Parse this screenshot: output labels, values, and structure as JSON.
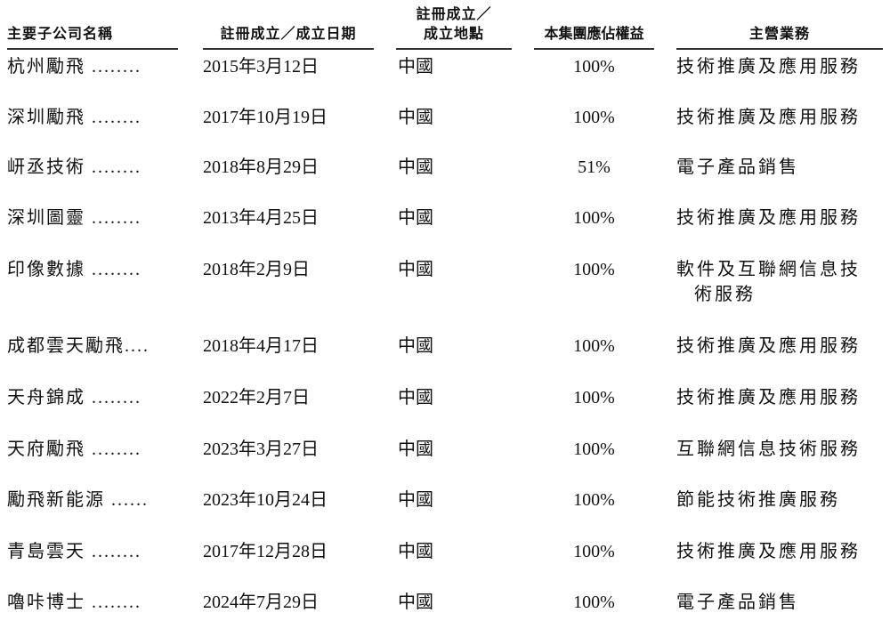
{
  "headers": [
    "主要子公司名稱",
    "註冊成立／成立日期",
    "註冊成立／\n成立地點",
    "本集團應佔權益",
    "主營業務"
  ],
  "header_place_line1": "註冊成立／",
  "header_place_line2": "成立地點",
  "rows": [
    {
      "name": "杭州勵飛 ........",
      "date": "2015年3月12日",
      "place": "中國",
      "equity": "100%",
      "business": "技術推廣及應用服務"
    },
    {
      "name": "深圳勵飛 ........",
      "date": "2017年10月19日",
      "place": "中國",
      "equity": "100%",
      "business": "技術推廣及應用服務"
    },
    {
      "name": "岍丞技術 ........",
      "date": "2018年8月29日",
      "place": "中國",
      "equity": "51%",
      "business": "電子產品銷售"
    },
    {
      "name": "深圳圖靈 ........",
      "date": "2013年4月25日",
      "place": "中國",
      "equity": "100%",
      "business": "技術推廣及應用服務"
    },
    {
      "name": "印像數據 ........",
      "date": "2018年2月9日",
      "place": "中國",
      "equity": "100%",
      "business": "軟件及互聯網信息技",
      "business2": "術服務"
    },
    {
      "name": "成都雲天勵飛....",
      "date": "2018年4月17日",
      "place": "中國",
      "equity": "100%",
      "business": "技術推廣及應用服務"
    },
    {
      "name": "天舟錦成 ........",
      "date": "2022年2月7日",
      "place": "中國",
      "equity": "100%",
      "business": "技術推廣及應用服務"
    },
    {
      "name": "天府勵飛 ........",
      "date": "2023年3月27日",
      "place": "中國",
      "equity": "100%",
      "business": "互聯網信息技術服務"
    },
    {
      "name": "勵飛新能源 ......",
      "date": "2023年10月24日",
      "place": "中國",
      "equity": "100%",
      "business": "節能技術推廣服務"
    },
    {
      "name": "青島雲天 ........",
      "date": "2017年12月28日",
      "place": "中國",
      "equity": "100%",
      "business": "技術推廣及應用服務"
    },
    {
      "name": "嚕咔博士 ........",
      "date": "2024年7月29日",
      "place": "中國",
      "equity": "100%",
      "business": "電子產品銷售"
    }
  ]
}
